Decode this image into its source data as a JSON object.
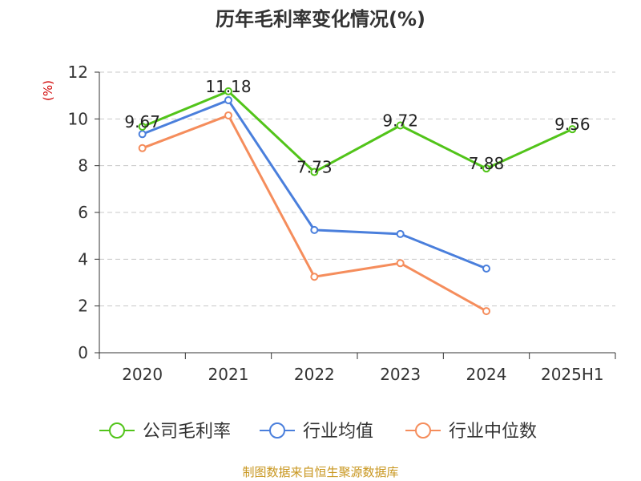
{
  "chart_data": {
    "type": "line",
    "title": "历年毛利率变化情况(%)",
    "unit_label": "(%)",
    "categories": [
      "2020",
      "2021",
      "2022",
      "2023",
      "2024",
      "2025H1"
    ],
    "ylim": [
      0,
      12
    ],
    "yticks": [
      0,
      2,
      4,
      6,
      8,
      10,
      12
    ],
    "grid": true,
    "legend_position": "bottom",
    "series": [
      {
        "name": "公司毛利率",
        "color": "#52c41a",
        "values": [
          9.67,
          11.18,
          7.73,
          9.72,
          7.88,
          9.56
        ],
        "show_labels": true
      },
      {
        "name": "行业均值",
        "color": "#4a7fdc",
        "values": [
          9.35,
          10.8,
          5.25,
          5.08,
          3.6,
          null
        ],
        "show_labels": false
      },
      {
        "name": "行业中位数",
        "color": "#f58d5c",
        "values": [
          8.75,
          10.15,
          3.25,
          3.83,
          1.78,
          null
        ],
        "show_labels": false
      }
    ]
  },
  "source": "制图数据来自恒生聚源数据库"
}
